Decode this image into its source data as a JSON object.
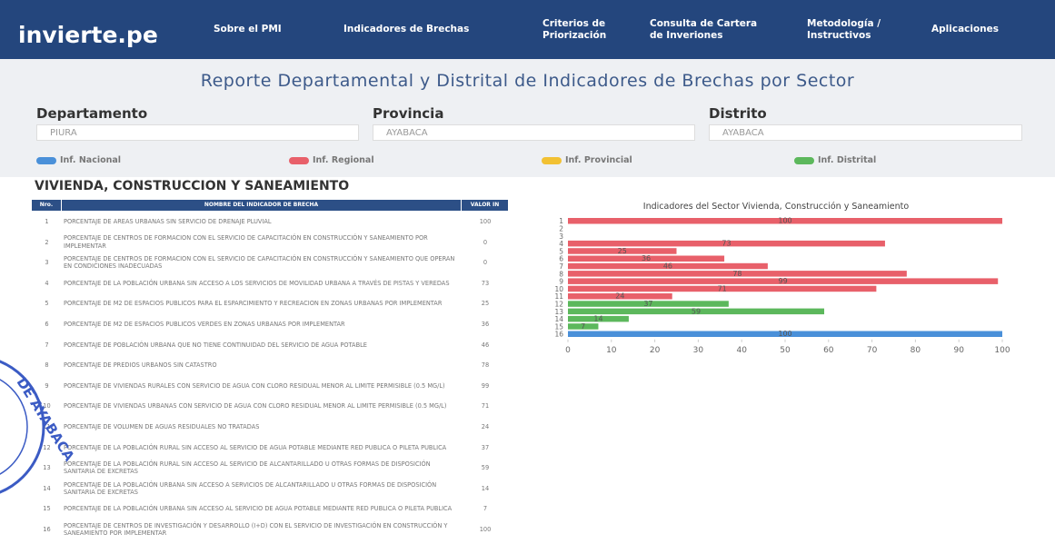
{
  "nav": {
    "brand": "invierte.pe",
    "items": [
      [
        "Sobre el PMI"
      ],
      [
        "Indicadores de Brechas"
      ],
      [
        "Criterios de",
        "Priorización"
      ],
      [
        "Consulta de Cartera",
        "de Inveriones"
      ],
      [
        "Metodología /",
        "Instructivos"
      ],
      [
        "Aplicaciones"
      ]
    ]
  },
  "report_title": "Reporte Departamental y Distrital de Indicadores de Brechas por Sector",
  "filters": [
    {
      "label": "Departamento",
      "value": "PIURA"
    },
    {
      "label": "Provincia",
      "value": "AYABACA"
    },
    {
      "label": "Distrito",
      "value": "AYABACA"
    }
  ],
  "section_title": "VIVIENDA, CONSTRUCCION Y SANEAMIENTO",
  "stamp": "DE AYABACA",
  "table": {
    "headers": [
      "Nro.",
      "NOMBRE DEL INDICADOR DE BRECHA",
      "VALOR IN"
    ],
    "rows": [
      [
        1,
        "PORCENTAJE DE AREAS URBANAS SIN SERVICIO DE DRENAJE PLUVIAL",
        100
      ],
      [
        2,
        "PORCENTAJE DE CENTROS DE FORMACION CON EL SERVICIO DE CAPACITACIÓN EN CONSTRUCCIÓN Y SANEAMIENTO POR IMPLEMENTAR",
        0
      ],
      [
        3,
        "PORCENTAJE DE CENTROS DE FORMACION CON EL SERVICIO DE CAPACITACIÓN EN CONSTRUCCIÓN Y SANEAMIENTO QUE OPERAN EN CONDICIONES INADECUADAS",
        0
      ],
      [
        4,
        "PORCENTAJE DE LA POBLACIÓN URBANA SIN ACCESO A LOS SERVICIOS DE MOVILIDAD URBANA A TRAVÉS DE PISTAS Y VEREDAS",
        73
      ],
      [
        5,
        "PORCENTAJE DE M2 DE ESPACIOS PUBLICOS PARA EL ESPARCIMIENTO Y RECREACION EN ZONAS URBANAS POR IMPLEMENTAR",
        25
      ],
      [
        6,
        "PORCENTAJE DE M2 DE ESPACIOS PUBLICOS VERDES EN ZONAS URBANAS POR IMPLEMENTAR",
        36
      ],
      [
        7,
        "PORCENTAJE DE POBLACIÓN URBANA QUE NO TIENE CONTINUIDAD DEL SERVICIO DE AGUA POTABLE",
        46
      ],
      [
        8,
        "PORCENTAJE DE PREDIOS URBANOS SIN CATASTRO",
        78
      ],
      [
        9,
        "PORCENTAJE DE VIVIENDAS RURALES CON SERVICIO DE AGUA CON CLORO RESIDUAL MENOR AL LIMITE PERMISIBLE (0.5 MG/L)",
        99
      ],
      [
        10,
        "PORCENTAJE DE VIVIENDAS URBANAS CON SERVICIO DE AGUA CON CLORO RESIDUAL MENOR AL LIMITE PERMISIBLE (0.5 MG/L)",
        71
      ],
      [
        11,
        "PORCENTAJE DE VOLUMEN DE AGUAS RESIDUALES NO TRATADAS",
        24
      ],
      [
        12,
        "PORCENTAJE DE LA POBLACIÓN RURAL SIN ACCESO AL SERVICIO DE AGUA POTABLE MEDIANTE RED PUBLICA O PILETA PUBLICA",
        37
      ],
      [
        13,
        "PORCENTAJE DE LA POBLACIÓN RURAL SIN ACCESO AL SERVICIO DE ALCANTARILLADO U OTRAS FORMAS DE DISPOSICIÓN SANITARIA DE EXCRETAS",
        59
      ],
      [
        14,
        "PORCENTAJE DE LA POBLACIÓN URBANA SIN ACCESO A SERVICIOS DE ALCANTARILLADO U OTRAS FORMAS DE DISPOSICIÓN SANITARIA DE EXCRETAS",
        14
      ],
      [
        15,
        "PORCENTAJE DE LA POBLACIÓN URBANA SIN ACCESO AL SERVICIO DE AGUA POTABLE MEDIANTE RED PUBLICA O PILETA PUBLICA",
        7
      ],
      [
        16,
        "PORCENTAJE DE CENTROS DE INVESTIGACIÓN Y DESARROLLO (I+D) CON EL SERVICIO DE INVESTIGACIÓN EN CONSTRUCCIÓN Y SANEAMIENTO POR IMPLEMENTAR",
        100
      ]
    ]
  },
  "chart_data": {
    "type": "hbar",
    "title": "Indicadores del Sector Vivienda, Construcción y Saneamiento",
    "categories": [
      "1",
      "2",
      "3",
      "4",
      "5",
      "6",
      "7",
      "8",
      "9",
      "10",
      "11",
      "12",
      "13",
      "14",
      "15",
      "16"
    ],
    "series": [
      {
        "name": "Inf. Nacional",
        "color": "#4a90d9",
        "values": [
          null,
          null,
          null,
          null,
          null,
          null,
          null,
          null,
          null,
          null,
          null,
          null,
          null,
          null,
          null,
          100
        ]
      },
      {
        "name": "Inf. Regional",
        "color": "#e8606a",
        "values": [
          100,
          0,
          0,
          73,
          25,
          36,
          46,
          78,
          99,
          71,
          24,
          null,
          null,
          null,
          null,
          null
        ]
      },
      {
        "name": "Inf. Provincial",
        "color": "#f2c133",
        "values": [
          null,
          null,
          null,
          null,
          null,
          null,
          null,
          null,
          null,
          null,
          null,
          null,
          null,
          null,
          null,
          null
        ]
      },
      {
        "name": "Inf. Distrital",
        "color": "#5cb85c",
        "values": [
          null,
          null,
          null,
          null,
          null,
          null,
          null,
          null,
          null,
          null,
          null,
          37,
          59,
          14,
          7,
          null
        ]
      }
    ],
    "xlim": [
      0,
      100
    ],
    "xticks": [
      0,
      10,
      20,
      30,
      40,
      50,
      60,
      70,
      80,
      90,
      100
    ],
    "grid": false
  }
}
